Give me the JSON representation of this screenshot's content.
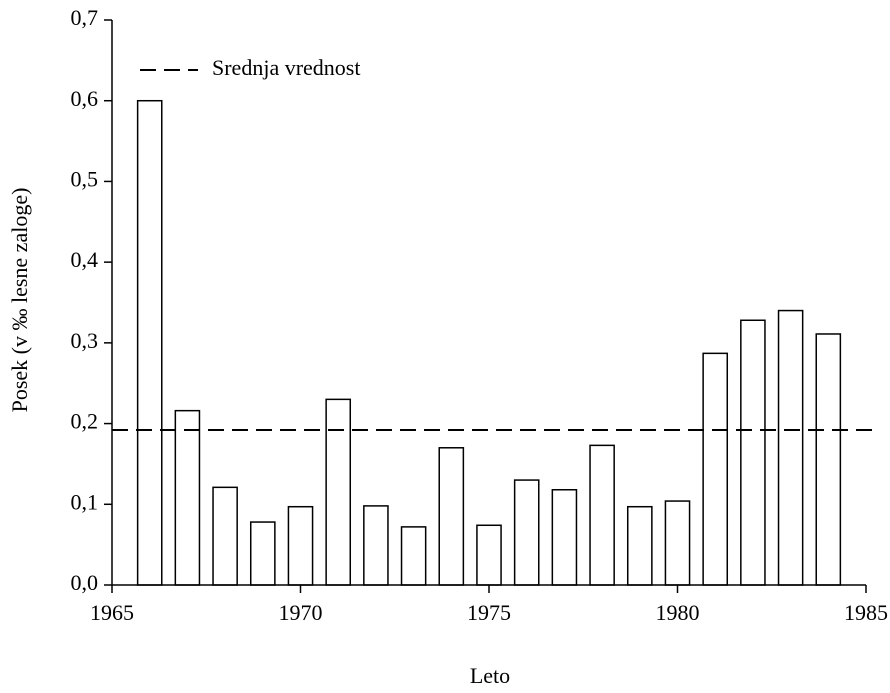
{
  "chart_data": {
    "type": "bar",
    "xlabel": "Leto",
    "ylabel": "Posek (v ‰ lesne zaloge)",
    "x": [
      1966,
      1967,
      1968,
      1969,
      1970,
      1971,
      1972,
      1973,
      1974,
      1975,
      1976,
      1977,
      1978,
      1979,
      1980,
      1981,
      1982,
      1983,
      1984
    ],
    "values": [
      0.6,
      0.216,
      0.121,
      0.078,
      0.097,
      0.23,
      0.098,
      0.072,
      0.17,
      0.074,
      0.13,
      0.118,
      0.173,
      0.097,
      0.104,
      0.287,
      0.328,
      0.34,
      0.311
    ],
    "color": "#ffffff",
    "edgecolor": "#000000",
    "reference_line": {
      "name": "Srednja vrednost",
      "value": 0.192,
      "style": "dashed",
      "color": "#000000"
    },
    "legend": "upper left",
    "xlim": [
      1965,
      1985
    ],
    "xticks": [
      1965,
      1970,
      1975,
      1980,
      1985
    ],
    "ylim": [
      0,
      0.7
    ],
    "yticks": [
      {
        "value": 0,
        "label": "0,0"
      },
      {
        "value": 0.1,
        "label": "0,1"
      },
      {
        "value": 0.2,
        "label": "0,2"
      },
      {
        "value": 0.3,
        "label": "0,3"
      },
      {
        "value": 0.4,
        "label": "0,4"
      },
      {
        "value": 0.5,
        "label": "0,5"
      },
      {
        "value": 0.6,
        "label": "0,6"
      },
      {
        "value": 0.7,
        "label": "0,7"
      }
    ],
    "grid": false
  }
}
